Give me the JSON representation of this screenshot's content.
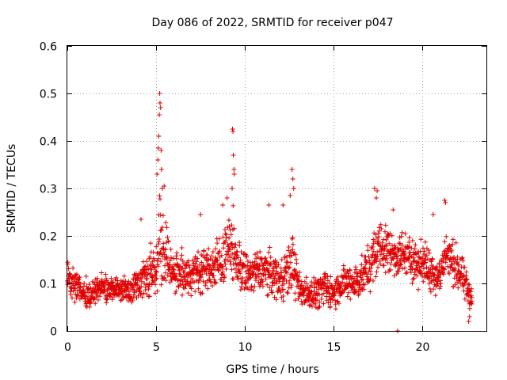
{
  "chart_data": {
    "type": "scatter",
    "title": "Day 086 of 2022, SRMTID for receiver p047",
    "xlabel": "GPS time / hours",
    "ylabel": "SRMTID / TECUs",
    "xlim": [
      0,
      23.6
    ],
    "ylim": [
      0,
      0.6
    ],
    "xticks": [
      0,
      5,
      10,
      15,
      20
    ],
    "yticks": [
      0,
      0.1,
      0.2,
      0.3,
      0.4,
      0.5,
      0.6
    ],
    "xtick_labels": [
      "0",
      "5",
      "10",
      "15",
      "20"
    ],
    "ytick_labels": [
      "0",
      "0.1",
      "0.2",
      "0.3",
      "0.4",
      "0.5",
      "0.6"
    ],
    "grid": true,
    "marker": "plus",
    "color": "#e00000",
    "series": [
      {
        "name": "SRMTID",
        "profile": {
          "x": [
            0,
            0.5,
            1,
            1.5,
            2,
            2.5,
            3,
            3.5,
            4,
            4.5,
            5,
            5.2,
            5.5,
            6,
            6.5,
            7,
            7.5,
            8,
            8.5,
            9,
            9.3,
            9.5,
            10,
            10.5,
            11,
            11.5,
            12,
            12.5,
            12.7,
            13,
            13.5,
            14,
            14.5,
            15,
            15.5,
            16,
            16.5,
            17,
            17.3,
            17.5,
            18,
            18.5,
            19,
            19.5,
            20,
            20.5,
            21,
            21.3,
            21.5,
            22,
            22.5,
            22.8
          ],
          "center": [
            0.11,
            0.09,
            0.08,
            0.08,
            0.09,
            0.085,
            0.09,
            0.09,
            0.1,
            0.12,
            0.13,
            0.2,
            0.16,
            0.12,
            0.12,
            0.12,
            0.13,
            0.13,
            0.14,
            0.17,
            0.18,
            0.15,
            0.12,
            0.12,
            0.13,
            0.12,
            0.11,
            0.13,
            0.15,
            0.09,
            0.08,
            0.08,
            0.09,
            0.08,
            0.1,
            0.1,
            0.11,
            0.13,
            0.16,
            0.18,
            0.17,
            0.16,
            0.16,
            0.15,
            0.14,
            0.13,
            0.11,
            0.17,
            0.15,
            0.13,
            0.09,
            0.07
          ],
          "spread": [
            0.04,
            0.035,
            0.03,
            0.03,
            0.03,
            0.03,
            0.03,
            0.03,
            0.04,
            0.05,
            0.06,
            0.1,
            0.07,
            0.05,
            0.05,
            0.05,
            0.05,
            0.05,
            0.06,
            0.07,
            0.08,
            0.06,
            0.05,
            0.05,
            0.05,
            0.05,
            0.05,
            0.06,
            0.07,
            0.04,
            0.035,
            0.035,
            0.04,
            0.035,
            0.04,
            0.04,
            0.045,
            0.05,
            0.06,
            0.06,
            0.06,
            0.05,
            0.05,
            0.05,
            0.05,
            0.05,
            0.045,
            0.06,
            0.05,
            0.05,
            0.04,
            0.03
          ]
        },
        "peaks": [
          {
            "x": 5.2,
            "y": 0.5
          },
          {
            "x": 5.22,
            "y": 0.48
          },
          {
            "x": 5.25,
            "y": 0.47
          },
          {
            "x": 5.18,
            "y": 0.455
          },
          {
            "x": 5.15,
            "y": 0.41
          },
          {
            "x": 5.12,
            "y": 0.385
          },
          {
            "x": 5.28,
            "y": 0.38
          },
          {
            "x": 5.1,
            "y": 0.36
          },
          {
            "x": 5.3,
            "y": 0.34
          },
          {
            "x": 5.05,
            "y": 0.33
          },
          {
            "x": 5.35,
            "y": 0.3
          },
          {
            "x": 5.45,
            "y": 0.305
          },
          {
            "x": 9.3,
            "y": 0.425
          },
          {
            "x": 9.33,
            "y": 0.42
          },
          {
            "x": 9.35,
            "y": 0.37
          },
          {
            "x": 9.38,
            "y": 0.34
          },
          {
            "x": 9.4,
            "y": 0.33
          },
          {
            "x": 9.28,
            "y": 0.3
          },
          {
            "x": 8.75,
            "y": 0.265
          },
          {
            "x": 9.0,
            "y": 0.28
          },
          {
            "x": 12.65,
            "y": 0.34
          },
          {
            "x": 12.7,
            "y": 0.32
          },
          {
            "x": 12.75,
            "y": 0.3
          },
          {
            "x": 12.55,
            "y": 0.285
          },
          {
            "x": 12.15,
            "y": 0.265
          },
          {
            "x": 11.35,
            "y": 0.265
          },
          {
            "x": 17.3,
            "y": 0.3
          },
          {
            "x": 17.45,
            "y": 0.295
          },
          {
            "x": 17.4,
            "y": 0.28
          },
          {
            "x": 18.35,
            "y": 0.255
          },
          {
            "x": 21.25,
            "y": 0.275
          },
          {
            "x": 21.3,
            "y": 0.27
          },
          {
            "x": 4.15,
            "y": 0.235
          },
          {
            "x": 7.5,
            "y": 0.245
          },
          {
            "x": 20.6,
            "y": 0.245
          },
          {
            "x": 18.6,
            "y": 0.0
          },
          {
            "x": 22.6,
            "y": 0.02
          },
          {
            "x": 22.65,
            "y": 0.03
          }
        ]
      }
    ]
  }
}
